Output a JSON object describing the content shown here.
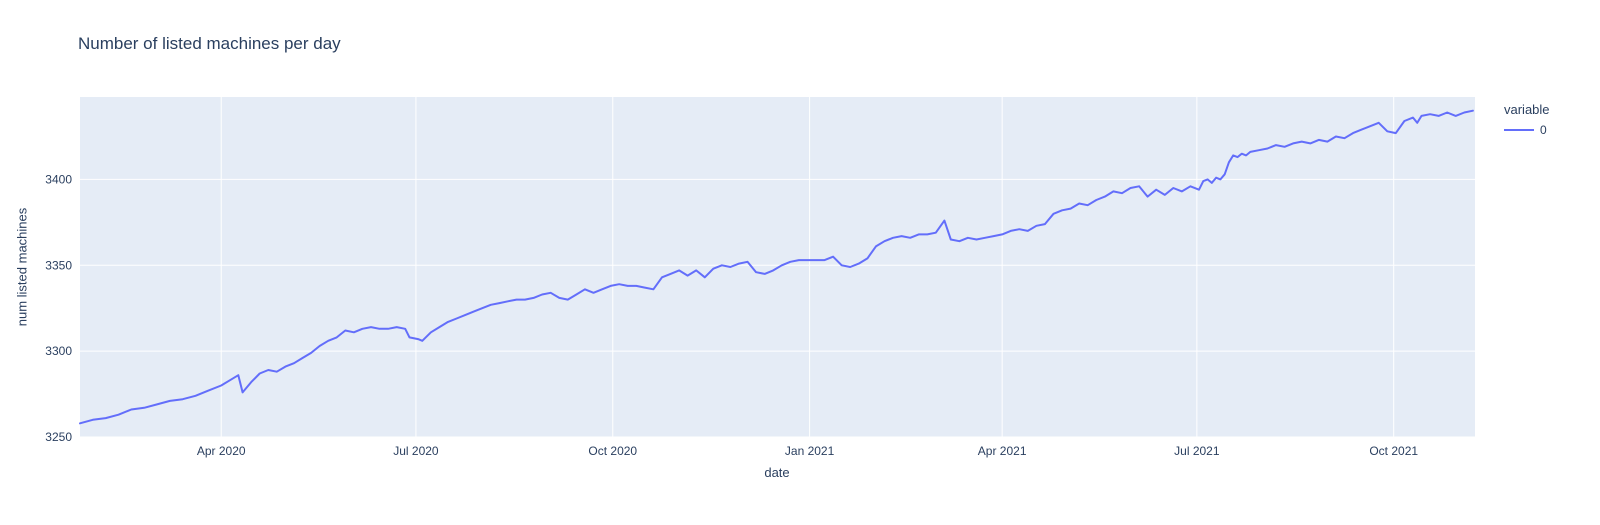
{
  "chart_data": {
    "type": "line",
    "title": "Number of listed machines per day",
    "xlabel": "date",
    "ylabel": "num listed machines",
    "legend_title": "variable",
    "legend_position": "right",
    "grid": true,
    "plot_bg": "#e5ecf6",
    "grid_color": "#ffffff",
    "text_color": "#2a3f5f",
    "x_unit": "days since 2020-01-01",
    "xlim": [
      25,
      677
    ],
    "ylim": [
      3250,
      3448
    ],
    "y_ticks": [
      3250,
      3300,
      3350,
      3400
    ],
    "x_ticks": [
      {
        "v": 91,
        "label": "Apr 2020"
      },
      {
        "v": 182,
        "label": "Jul 2020"
      },
      {
        "v": 274,
        "label": "Oct 2020"
      },
      {
        "v": 366,
        "label": "Jan 2021"
      },
      {
        "v": 456,
        "label": "Apr 2021"
      },
      {
        "v": 547,
        "label": "Jul 2021"
      },
      {
        "v": 639,
        "label": "Oct 2021"
      }
    ],
    "series": [
      {
        "name": "0",
        "color": "#636efa",
        "x": [
          25,
          31,
          37,
          43,
          49,
          55,
          61,
          67,
          73,
          79,
          85,
          91,
          95,
          99,
          101,
          105,
          109,
          113,
          117,
          121,
          125,
          129,
          133,
          137,
          141,
          145,
          149,
          153,
          157,
          161,
          165,
          169,
          173,
          177,
          179,
          183,
          185,
          189,
          193,
          197,
          201,
          205,
          209,
          213,
          217,
          221,
          225,
          229,
          233,
          237,
          241,
          245,
          249,
          253,
          257,
          261,
          265,
          269,
          273,
          277,
          281,
          285,
          289,
          293,
          297,
          301,
          305,
          309,
          313,
          317,
          321,
          325,
          329,
          333,
          337,
          341,
          345,
          349,
          353,
          357,
          361,
          365,
          369,
          373,
          377,
          381,
          385,
          389,
          393,
          397,
          401,
          405,
          409,
          413,
          417,
          421,
          425,
          429,
          432,
          436,
          440,
          444,
          448,
          452,
          456,
          460,
          464,
          468,
          472,
          476,
          480,
          484,
          488,
          492,
          496,
          500,
          504,
          508,
          512,
          516,
          520,
          524,
          528,
          532,
          536,
          540,
          544,
          548,
          550,
          552,
          554,
          556,
          558,
          560,
          562,
          564,
          566,
          568,
          570,
          572,
          576,
          580,
          584,
          588,
          592,
          596,
          600,
          604,
          608,
          612,
          616,
          620,
          624,
          628,
          632,
          636,
          640,
          644,
          648,
          650,
          652,
          656,
          660,
          664,
          668,
          672,
          676
        ],
        "y": [
          3258,
          3260,
          3261,
          3263,
          3266,
          3267,
          3269,
          3271,
          3272,
          3274,
          3277,
          3280,
          3283,
          3286,
          3276,
          3282,
          3287,
          3289,
          3288,
          3291,
          3293,
          3296,
          3299,
          3303,
          3306,
          3308,
          3312,
          3311,
          3313,
          3314,
          3313,
          3313,
          3314,
          3313,
          3308,
          3307,
          3306,
          3311,
          3314,
          3317,
          3319,
          3321,
          3323,
          3325,
          3327,
          3328,
          3329,
          3330,
          3330,
          3331,
          3333,
          3334,
          3331,
          3330,
          3333,
          3336,
          3334,
          3336,
          3338,
          3339,
          3338,
          3338,
          3337,
          3336,
          3343,
          3345,
          3347,
          3344,
          3347,
          3343,
          3348,
          3350,
          3349,
          3351,
          3352,
          3346,
          3345,
          3347,
          3350,
          3352,
          3353,
          3353,
          3353,
          3353,
          3355,
          3350,
          3349,
          3351,
          3354,
          3361,
          3364,
          3366,
          3367,
          3366,
          3368,
          3368,
          3369,
          3376,
          3365,
          3364,
          3366,
          3365,
          3366,
          3367,
          3368,
          3370,
          3371,
          3370,
          3373,
          3374,
          3380,
          3382,
          3383,
          3386,
          3385,
          3388,
          3390,
          3393,
          3392,
          3395,
          3396,
          3390,
          3394,
          3391,
          3395,
          3393,
          3396,
          3394,
          3399,
          3400,
          3398,
          3401,
          3400,
          3403,
          3410,
          3414,
          3413,
          3415,
          3414,
          3416,
          3417,
          3418,
          3420,
          3419,
          3421,
          3422,
          3421,
          3423,
          3422,
          3425,
          3424,
          3427,
          3429,
          3431,
          3433,
          3428,
          3427,
          3434,
          3436,
          3433,
          3437,
          3438,
          3437,
          3439,
          3437,
          3439,
          3440
        ]
      }
    ]
  }
}
